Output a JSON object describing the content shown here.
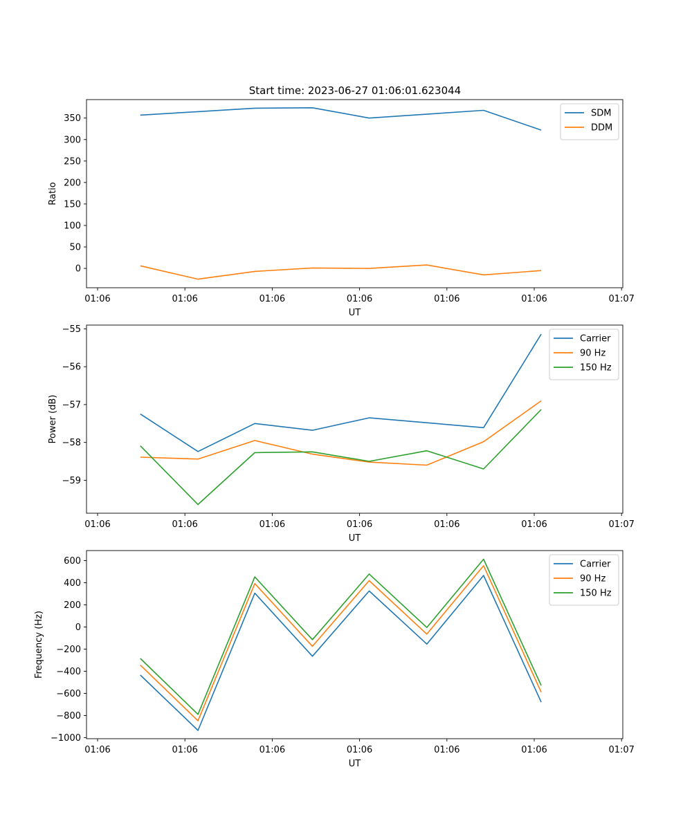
{
  "figure": {
    "title": "Start time: 2023-06-27 01:06:01.623044"
  },
  "chart_data": [
    {
      "type": "line",
      "xlabel": "UT",
      "ylabel": "Ratio",
      "xlim": [
        0,
        6.0
      ],
      "ylim": [
        -45,
        393
      ],
      "grid": false,
      "legend_position": "top-right",
      "x_ticks": [
        {
          "x": 0.0,
          "label": "01:06"
        },
        {
          "x": 1.0,
          "label": "01:06"
        },
        {
          "x": 2.0,
          "label": "01:06"
        },
        {
          "x": 3.0,
          "label": "01:06"
        },
        {
          "x": 4.0,
          "label": "01:06"
        },
        {
          "x": 5.0,
          "label": "01:06"
        },
        {
          "x": 6.0,
          "label": "01:07"
        }
      ],
      "y_ticks": [
        {
          "y": 350,
          "label": "350"
        },
        {
          "y": 300,
          "label": "300"
        },
        {
          "y": 250,
          "label": "250"
        },
        {
          "y": 200,
          "label": "200"
        },
        {
          "y": 150,
          "label": "150"
        },
        {
          "y": 100,
          "label": "100"
        },
        {
          "y": 50,
          "label": "50"
        },
        {
          "y": 0,
          "label": "0"
        }
      ],
      "x": [
        0.49,
        1.15,
        1.8,
        2.46,
        3.11,
        3.77,
        4.42,
        5.08
      ],
      "series": [
        {
          "name": "SDM",
          "color": "#1f77b4",
          "values": [
            357,
            365,
            373,
            374,
            350,
            359,
            368,
            322
          ]
        },
        {
          "name": "DDM",
          "color": "#ff7f0e",
          "values": [
            6,
            -25,
            -7,
            1,
            0,
            8,
            -15,
            -5
          ]
        }
      ]
    },
    {
      "type": "line",
      "xlabel": "UT",
      "ylabel": "Power (dB)",
      "xlim": [
        0,
        6.0
      ],
      "ylim": [
        -59.87,
        -54.9
      ],
      "grid": false,
      "legend_position": "top-right",
      "x_ticks": [
        {
          "x": 0.0,
          "label": "01:06"
        },
        {
          "x": 1.0,
          "label": "01:06"
        },
        {
          "x": 2.0,
          "label": "01:06"
        },
        {
          "x": 3.0,
          "label": "01:06"
        },
        {
          "x": 4.0,
          "label": "01:06"
        },
        {
          "x": 5.0,
          "label": "01:06"
        },
        {
          "x": 6.0,
          "label": "01:07"
        }
      ],
      "y_ticks": [
        {
          "y": -55,
          "label": "−55"
        },
        {
          "y": -56,
          "label": "−56"
        },
        {
          "y": -57,
          "label": "−57"
        },
        {
          "y": -58,
          "label": "−58"
        },
        {
          "y": -59,
          "label": "−59"
        }
      ],
      "x": [
        0.49,
        1.15,
        1.8,
        2.46,
        3.11,
        3.77,
        4.42,
        5.08
      ],
      "series": [
        {
          "name": "Carrier",
          "color": "#1f77b4",
          "values": [
            -57.25,
            -58.24,
            -57.5,
            -57.68,
            -57.35,
            -57.48,
            -57.61,
            -55.14
          ]
        },
        {
          "name": "90 Hz",
          "color": "#ff7f0e",
          "values": [
            -58.39,
            -58.44,
            -57.95,
            -58.31,
            -58.52,
            -58.6,
            -57.98,
            -56.9
          ]
        },
        {
          "name": "150 Hz",
          "color": "#2ca02c",
          "values": [
            -58.09,
            -59.64,
            -58.27,
            -58.25,
            -58.5,
            -58.22,
            -58.7,
            -57.13
          ]
        }
      ]
    },
    {
      "type": "line",
      "xlabel": "UT",
      "ylabel": "Frequency (Hz)",
      "xlim": [
        0,
        6.0
      ],
      "ylim": [
        -1010,
        690
      ],
      "grid": false,
      "legend_position": "top-right",
      "x_ticks": [
        {
          "x": 0.0,
          "label": "01:06"
        },
        {
          "x": 1.0,
          "label": "01:06"
        },
        {
          "x": 2.0,
          "label": "01:06"
        },
        {
          "x": 3.0,
          "label": "01:06"
        },
        {
          "x": 4.0,
          "label": "01:06"
        },
        {
          "x": 5.0,
          "label": "01:06"
        },
        {
          "x": 6.0,
          "label": "01:07"
        }
      ],
      "y_ticks": [
        {
          "y": 600,
          "label": "600"
        },
        {
          "y": 400,
          "label": "400"
        },
        {
          "y": 200,
          "label": "200"
        },
        {
          "y": 0,
          "label": "0"
        },
        {
          "y": -200,
          "label": "−200"
        },
        {
          "y": -400,
          "label": "−400"
        },
        {
          "y": -600,
          "label": "−600"
        },
        {
          "y": -800,
          "label": "−800"
        },
        {
          "y": -1000,
          "label": "−1000"
        }
      ],
      "x": [
        0.49,
        1.15,
        1.8,
        2.46,
        3.11,
        3.77,
        4.42,
        5.08
      ],
      "series": [
        {
          "name": "Carrier",
          "color": "#1f77b4",
          "values": [
            -435,
            -935,
            305,
            -265,
            325,
            -155,
            465,
            -680
          ]
        },
        {
          "name": "90 Hz",
          "color": "#ff7f0e",
          "values": [
            -345,
            -848,
            392,
            -175,
            418,
            -65,
            553,
            -590
          ]
        },
        {
          "name": "150 Hz",
          "color": "#2ca02c",
          "values": [
            -285,
            -790,
            452,
            -115,
            478,
            -5,
            612,
            -530
          ]
        }
      ]
    }
  ]
}
